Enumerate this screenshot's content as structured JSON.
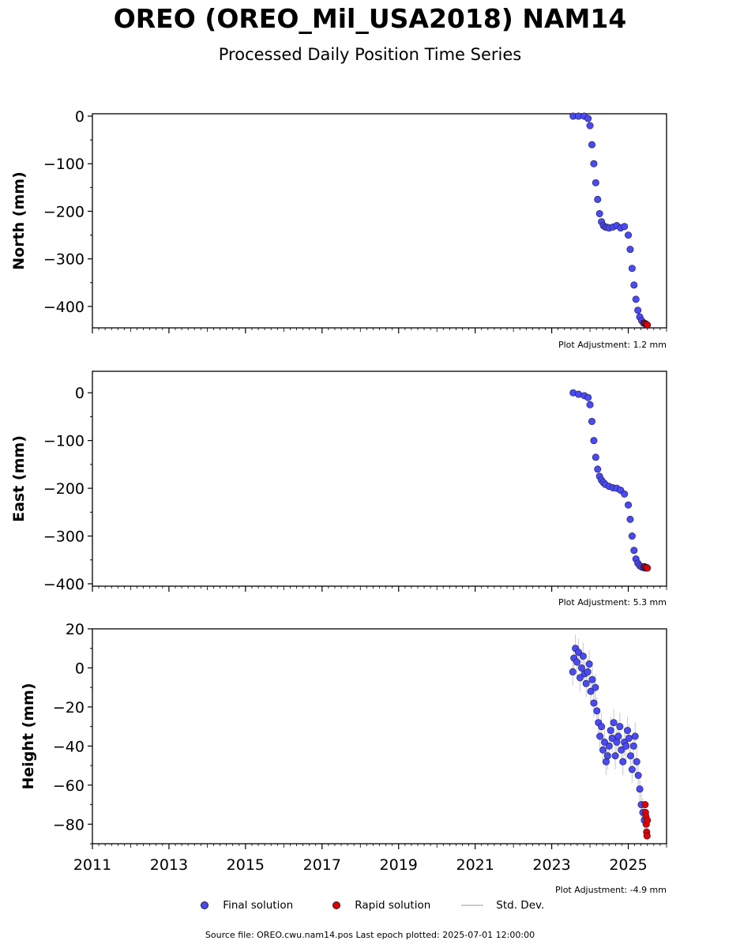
{
  "title": "OREO (OREO_Mil_USA2018) NAM14",
  "subtitle": "Processed Daily Position Time Series",
  "colors": {
    "final": "#4a4af5",
    "rapid": "#e00000",
    "stddev": "#bbbbbb"
  },
  "legend": {
    "final": "Final solution",
    "rapid": "Rapid solution",
    "stddev": "Std. Dev."
  },
  "footer": "Source file: OREO.cwu.nam14.pos  Last epoch plotted: 2025-07-01 12:00:00",
  "chart_data": [
    {
      "type": "scatter",
      "ylabel": "North (mm)",
      "xlim": [
        2011.0,
        2026.0
      ],
      "ylim": [
        -445,
        5
      ],
      "yticks": [
        0,
        -100,
        -200,
        -300,
        -400
      ],
      "adjustment": "Plot Adjustment: 1.2 mm",
      "series": [
        {
          "name": "Final solution",
          "x": [
            2023.56,
            2023.7,
            2023.85,
            2023.95,
            2024.0,
            2024.05,
            2024.1,
            2024.15,
            2024.2,
            2024.25,
            2024.3,
            2024.35,
            2024.4,
            2024.45,
            2024.5,
            2024.6,
            2024.7,
            2024.8,
            2024.9,
            2025.0,
            2025.05,
            2025.1,
            2025.15,
            2025.2,
            2025.25,
            2025.3,
            2025.35,
            2025.4,
            2025.45
          ],
          "y": [
            0,
            0,
            0,
            -5,
            -20,
            -60,
            -100,
            -140,
            -175,
            -205,
            -222,
            -230,
            -233,
            -234,
            -235,
            -233,
            -230,
            -235,
            -232,
            -250,
            -280,
            -320,
            -355,
            -385,
            -408,
            -422,
            -430,
            -435,
            -437
          ]
        },
        {
          "name": "Rapid solution",
          "x": [
            2025.42,
            2025.44,
            2025.46,
            2025.48,
            2025.5
          ],
          "y": [
            -435,
            -436,
            -437,
            -438,
            -439
          ]
        }
      ]
    },
    {
      "type": "scatter",
      "ylabel": "East (mm)",
      "xlim": [
        2011.0,
        2026.0
      ],
      "ylim": [
        -405,
        45
      ],
      "yticks": [
        0,
        -100,
        -200,
        -300,
        -400
      ],
      "adjustment": "Plot Adjustment: 5.3 mm",
      "series": [
        {
          "name": "Final solution",
          "x": [
            2023.56,
            2023.7,
            2023.85,
            2023.95,
            2024.0,
            2024.05,
            2024.1,
            2024.15,
            2024.2,
            2024.25,
            2024.3,
            2024.35,
            2024.4,
            2024.5,
            2024.6,
            2024.7,
            2024.8,
            2024.9,
            2025.0,
            2025.05,
            2025.1,
            2025.15,
            2025.2,
            2025.25,
            2025.3,
            2025.35,
            2025.4,
            2025.45
          ],
          "y": [
            0,
            -3,
            -6,
            -10,
            -25,
            -60,
            -100,
            -135,
            -160,
            -175,
            -183,
            -188,
            -192,
            -196,
            -199,
            -200,
            -204,
            -212,
            -235,
            -265,
            -300,
            -330,
            -348,
            -357,
            -362,
            -365,
            -366,
            -367
          ]
        },
        {
          "name": "Rapid solution",
          "x": [
            2025.42,
            2025.44,
            2025.46,
            2025.48,
            2025.5
          ],
          "y": [
            -364,
            -365,
            -366,
            -366,
            -367
          ]
        }
      ]
    },
    {
      "type": "scatter",
      "ylabel": "Height (mm)",
      "xlim": [
        2011.0,
        2026.0
      ],
      "ylim": [
        -90,
        20
      ],
      "yticks": [
        20,
        0,
        -20,
        -40,
        -60,
        -80
      ],
      "xticks": [
        "2011",
        "2013",
        "2015",
        "2017",
        "2019",
        "2021",
        "2023",
        "2025"
      ],
      "adjustment": "Plot Adjustment: -4.9 mm",
      "series": [
        {
          "name": "Final solution",
          "x": [
            2023.55,
            2023.58,
            2023.62,
            2023.66,
            2023.7,
            2023.74,
            2023.78,
            2023.82,
            2023.86,
            2023.9,
            2023.94,
            2023.98,
            2024.02,
            2024.06,
            2024.1,
            2024.14,
            2024.18,
            2024.22,
            2024.26,
            2024.3,
            2024.34,
            2024.38,
            2024.42,
            2024.46,
            2024.5,
            2024.54,
            2024.58,
            2024.62,
            2024.66,
            2024.7,
            2024.74,
            2024.78,
            2024.82,
            2024.86,
            2024.9,
            2024.94,
            2024.98,
            2025.02,
            2025.06,
            2025.1,
            2025.14,
            2025.18,
            2025.22,
            2025.26,
            2025.3,
            2025.34,
            2025.38,
            2025.42
          ],
          "y": [
            -2,
            5,
            10,
            3,
            8,
            -5,
            0,
            6,
            -3,
            -8,
            -2,
            2,
            -12,
            -6,
            -18,
            -10,
            -22,
            -28,
            -35,
            -30,
            -42,
            -38,
            -48,
            -45,
            -40,
            -32,
            -36,
            -28,
            -45,
            -38,
            -35,
            -30,
            -42,
            -48,
            -38,
            -40,
            -32,
            -36,
            -45,
            -52,
            -40,
            -35,
            -48,
            -55,
            -62,
            -70,
            -74,
            -78
          ]
        },
        {
          "name": "Rapid solution",
          "x": [
            2025.44,
            2025.45,
            2025.46,
            2025.47,
            2025.48,
            2025.49,
            2025.5
          ],
          "y": [
            -70,
            -74,
            -76,
            -80,
            -84,
            -86,
            -78
          ]
        }
      ]
    }
  ]
}
